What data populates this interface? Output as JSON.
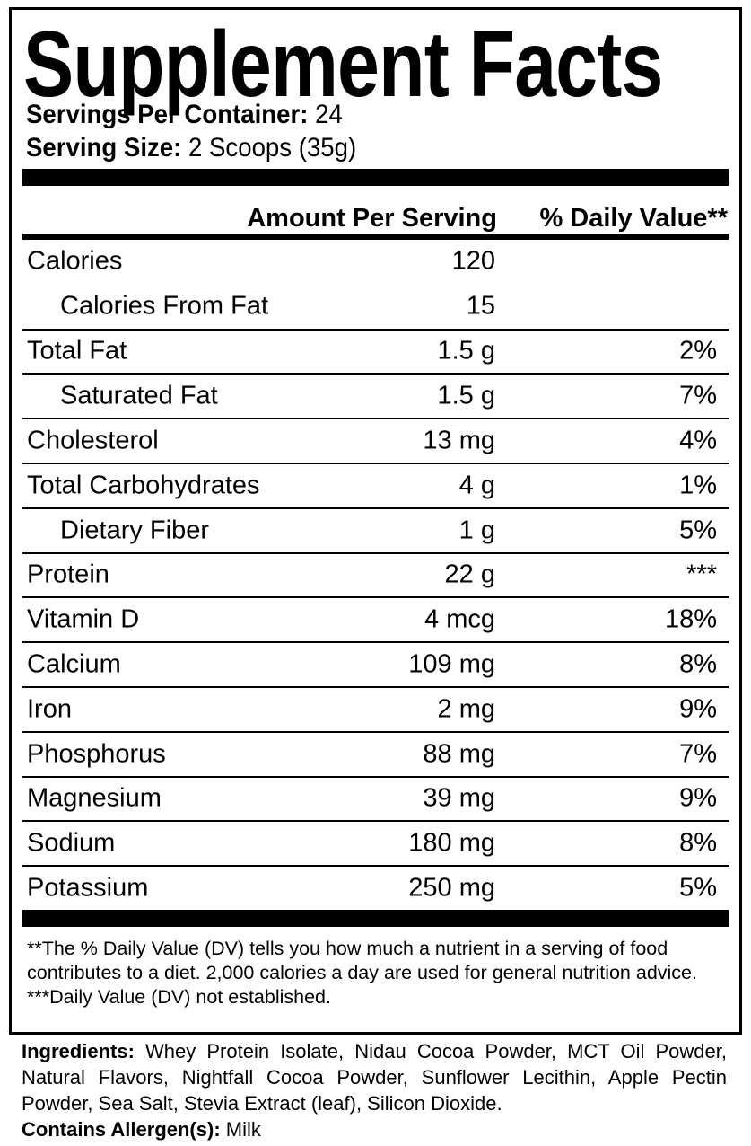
{
  "title": "Supplement Facts",
  "servings": {
    "per_container_label": "Servings Per Container:",
    "per_container_value": "24",
    "size_label": "Serving Size:",
    "size_value": "2 Scoops (35g)"
  },
  "header": {
    "amount": "Amount Per Serving",
    "dv": "% Daily Value**"
  },
  "rows": [
    {
      "name": "Calories",
      "amount": "120",
      "dv": ""
    },
    {
      "name": "Calories From Fat",
      "amount": "15",
      "dv": ""
    },
    {
      "name": "Total Fat",
      "amount": "1.5 g",
      "dv": "2%"
    },
    {
      "name": "Saturated Fat",
      "amount": "1.5 g",
      "dv": "7%"
    },
    {
      "name": "Cholesterol",
      "amount": "13 mg",
      "dv": "4%"
    },
    {
      "name": "Total Carbohydrates",
      "amount": "4 g",
      "dv": "1%"
    },
    {
      "name": "Dietary Fiber",
      "amount": "1 g",
      "dv": "5%"
    },
    {
      "name": "Protein",
      "amount": "22 g",
      "dv": "***"
    },
    {
      "name": "Vitamin D",
      "amount": "4 mcg",
      "dv": "18%"
    },
    {
      "name": "Calcium",
      "amount": "109 mg",
      "dv": "8%"
    },
    {
      "name": "Iron",
      "amount": "2 mg",
      "dv": "9%"
    },
    {
      "name": "Phosphorus",
      "amount": "88 mg",
      "dv": "7%"
    },
    {
      "name": "Magnesium",
      "amount": "39 mg",
      "dv": "9%"
    },
    {
      "name": "Sodium",
      "amount": "180 mg",
      "dv": "8%"
    },
    {
      "name": "Potassium",
      "amount": "250 mg",
      "dv": "5%"
    }
  ],
  "footnotes": {
    "dv_note": "**The % Daily Value (DV) tells you how much a nutrient in a serving of food contributes to a diet. 2,000 calories a day are used for general nutrition advice.",
    "not_established": "***Daily Value (DV) not established."
  },
  "ingredients": {
    "label": "Ingredients:",
    "text": "Whey Protein Isolate, Nidau Cocoa Powder, MCT Oil Powder, Natural Flavors, Nightfall Cocoa Powder, Sunflower Lecithin, Apple Pectin Powder, Sea Salt, Stevia Extract (leaf), Silicon Dioxide."
  },
  "allergens": {
    "label": "Contains Allergen(s):",
    "text": "Milk"
  }
}
